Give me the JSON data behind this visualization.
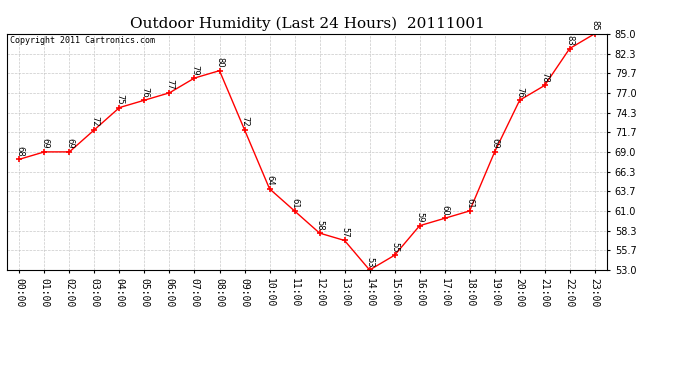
{
  "title": "Outdoor Humidity (Last 24 Hours)  20111001",
  "copyright": "Copyright 2011 Cartronics.com",
  "x_labels": [
    "00:00",
    "01:00",
    "02:00",
    "03:00",
    "04:00",
    "05:00",
    "06:00",
    "07:00",
    "08:00",
    "09:00",
    "10:00",
    "11:00",
    "12:00",
    "13:00",
    "14:00",
    "15:00",
    "16:00",
    "17:00",
    "18:00",
    "19:00",
    "20:00",
    "21:00",
    "22:00",
    "23:00"
  ],
  "hours": [
    0,
    1,
    2,
    3,
    4,
    5,
    6,
    7,
    8,
    9,
    10,
    11,
    12,
    13,
    14,
    15,
    16,
    17,
    18,
    19,
    20,
    21,
    22,
    23
  ],
  "values": [
    68,
    69,
    69,
    72,
    75,
    76,
    77,
    79,
    80,
    72,
    64,
    61,
    58,
    57,
    53,
    55,
    59,
    60,
    61,
    69,
    76,
    78,
    83,
    85
  ],
  "ylim_min": 53.0,
  "ylim_max": 85.0,
  "yticks": [
    53.0,
    55.7,
    58.3,
    61.0,
    63.7,
    66.3,
    69.0,
    71.7,
    74.3,
    77.0,
    79.7,
    82.3,
    85.0
  ],
  "line_color": "red",
  "marker": "+",
  "grid_color": "#bbbbbb",
  "bg_color": "white",
  "title_fontsize": 11,
  "annot_fontsize": 6,
  "tick_fontsize": 7,
  "copyright_fontsize": 6
}
